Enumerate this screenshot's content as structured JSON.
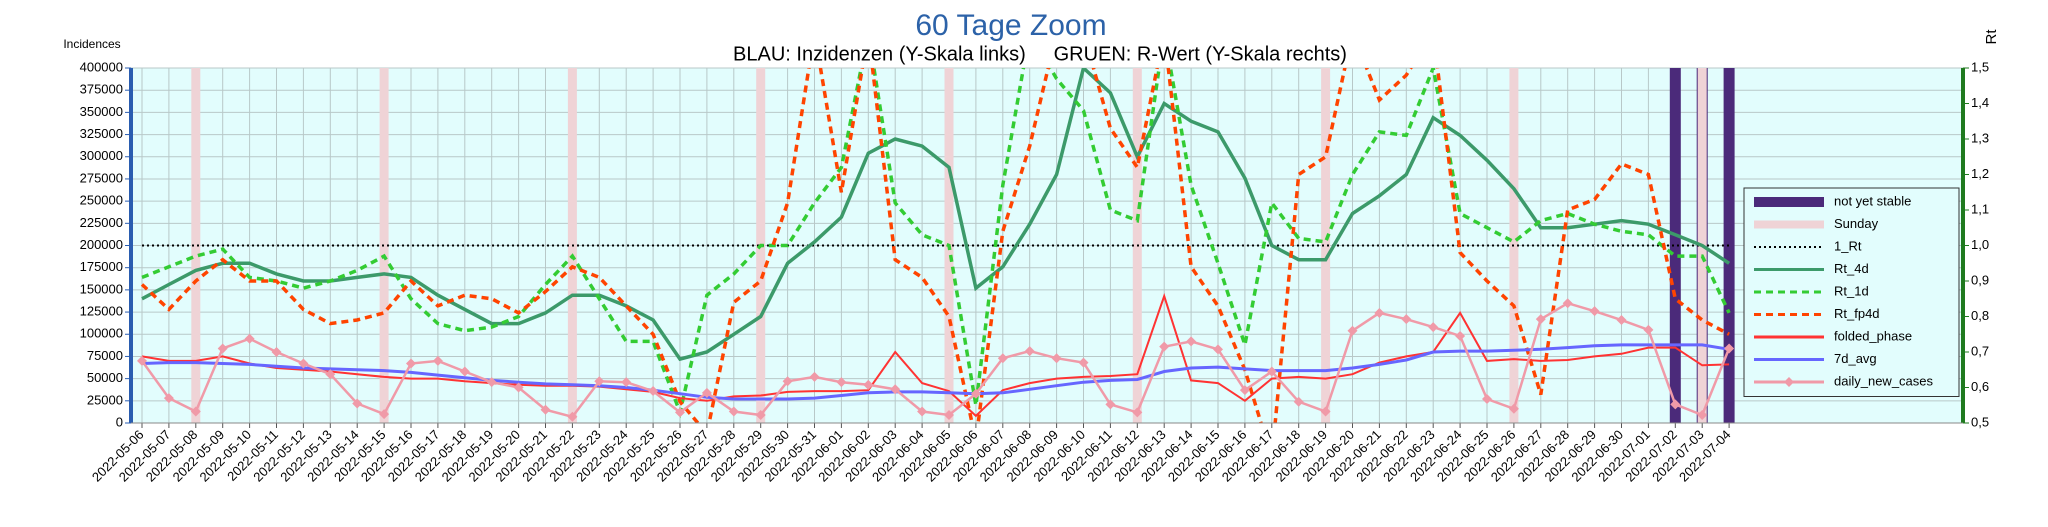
{
  "chart_data": {
    "type": "line",
    "title": "60 Tage Zoom",
    "subtitle": "BLAU: Inzidenzen (Y-Skala links)     GRUEN: R-Wert (Y-Skala rechts)",
    "y_label": "Incidences",
    "y2_label": "Rt",
    "categories": [
      "2022-05-06",
      "2022-05-07",
      "2022-05-08",
      "2022-05-09",
      "2022-05-10",
      "2022-05-11",
      "2022-05-12",
      "2022-05-13",
      "2022-05-14",
      "2022-05-15",
      "2022-05-16",
      "2022-05-17",
      "2022-05-18",
      "2022-05-19",
      "2022-05-20",
      "2022-05-21",
      "2022-05-22",
      "2022-05-23",
      "2022-05-24",
      "2022-05-25",
      "2022-05-26",
      "2022-05-27",
      "2022-05-28",
      "2022-05-29",
      "2022-05-30",
      "2022-05-31",
      "2022-06-01",
      "2022-06-02",
      "2022-06-03",
      "2022-06-04",
      "2022-06-05",
      "2022-06-06",
      "2022-06-07",
      "2022-06-08",
      "2022-06-09",
      "2022-06-10",
      "2022-06-11",
      "2022-06-12",
      "2022-06-13",
      "2022-06-14",
      "2022-06-15",
      "2022-06-16",
      "2022-06-17",
      "2022-06-18",
      "2022-06-19",
      "2022-06-20",
      "2022-06-21",
      "2022-06-22",
      "2022-06-23",
      "2022-06-24",
      "2022-06-25",
      "2022-06-26",
      "2022-06-27",
      "2022-06-28",
      "2022-06-29",
      "2022-06-30",
      "2022-07-01",
      "2022-07-02",
      "2022-07-03",
      "2022-07-04"
    ],
    "ylim": [
      0,
      400000
    ],
    "yticks": [
      0,
      25000,
      50000,
      75000,
      100000,
      125000,
      150000,
      175000,
      200000,
      225000,
      250000,
      275000,
      300000,
      325000,
      350000,
      375000,
      400000
    ],
    "y2lim": [
      0.5,
      1.5
    ],
    "y2ticks": [
      {
        "value": 0.5,
        "label": "0,5"
      },
      {
        "value": 0.6,
        "label": "0,6"
      },
      {
        "value": 0.7,
        "label": "0,7"
      },
      {
        "value": 0.8,
        "label": "0,8"
      },
      {
        "value": 0.9,
        "label": "0,9"
      },
      {
        "value": 1.0,
        "label": "1,0"
      },
      {
        "value": 1.1,
        "label": "1,1"
      },
      {
        "value": 1.2,
        "label": "1,2"
      },
      {
        "value": 1.3,
        "label": "1,3"
      },
      {
        "value": 1.4,
        "label": "1,4"
      },
      {
        "value": 1.5,
        "label": "1,5"
      }
    ],
    "grid": true,
    "legend": "right",
    "series": [
      {
        "name": "not yet stable",
        "color": "#4b2a7a",
        "style": "bar",
        "values": [
          null,
          null,
          null,
          null,
          null,
          null,
          null,
          null,
          null,
          null,
          null,
          null,
          null,
          null,
          null,
          null,
          null,
          null,
          null,
          null,
          null,
          null,
          null,
          null,
          null,
          null,
          null,
          null,
          null,
          null,
          null,
          null,
          null,
          null,
          null,
          null,
          null,
          null,
          null,
          null,
          null,
          null,
          null,
          null,
          null,
          null,
          null,
          null,
          null,
          null,
          null,
          null,
          null,
          null,
          null,
          null,
          null,
          400000,
          400000,
          400000
        ]
      },
      {
        "name": "Sunday",
        "color": "#efd3d6",
        "style": "bar",
        "values": [
          null,
          null,
          400000,
          null,
          null,
          null,
          null,
          null,
          null,
          400000,
          null,
          null,
          null,
          null,
          null,
          null,
          400000,
          null,
          null,
          null,
          null,
          null,
          null,
          400000,
          null,
          null,
          null,
          null,
          null,
          null,
          400000,
          null,
          null,
          null,
          null,
          null,
          null,
          400000,
          null,
          null,
          null,
          null,
          null,
          null,
          400000,
          null,
          null,
          null,
          null,
          null,
          null,
          400000,
          null,
          null,
          null,
          null,
          null,
          null,
          400000,
          null
        ]
      },
      {
        "name": "1_Rt",
        "color": "#000000",
        "style": "dotted",
        "axis": "y2",
        "values": [
          1,
          1,
          1,
          1,
          1,
          1,
          1,
          1,
          1,
          1,
          1,
          1,
          1,
          1,
          1,
          1,
          1,
          1,
          1,
          1,
          1,
          1,
          1,
          1,
          1,
          1,
          1,
          1,
          1,
          1,
          1,
          1,
          1,
          1,
          1,
          1,
          1,
          1,
          1,
          1,
          1,
          1,
          1,
          1,
          1,
          1,
          1,
          1,
          1,
          1,
          1,
          1,
          1,
          1,
          1,
          1,
          1,
          1,
          1,
          1
        ]
      },
      {
        "name": "Rt_4d",
        "color": "#3c9a6a",
        "style": "line",
        "axis": "y2",
        "values": [
          0.85,
          0.89,
          0.93,
          0.95,
          0.95,
          0.92,
          0.9,
          0.9,
          0.91,
          0.92,
          0.91,
          0.86,
          0.82,
          0.78,
          0.78,
          0.81,
          0.86,
          0.86,
          0.83,
          0.79,
          0.68,
          0.7,
          0.75,
          0.8,
          0.95,
          1.01,
          1.08,
          1.26,
          1.3,
          1.28,
          1.22,
          0.88,
          0.94,
          1.06,
          1.2,
          1.5,
          1.43,
          1.25,
          1.4,
          1.35,
          1.32,
          1.19,
          1.0,
          0.96,
          0.96,
          1.09,
          1.14,
          1.2,
          1.36,
          1.31,
          1.24,
          1.16,
          1.05,
          1.05,
          1.06,
          1.07,
          1.06,
          1.03,
          1.0,
          0.95
        ]
      },
      {
        "name": "Rt_1d",
        "color": "#33cc33",
        "style": "dashed",
        "axis": "y2",
        "values": [
          0.91,
          0.94,
          0.97,
          0.99,
          0.91,
          0.9,
          0.88,
          0.9,
          0.93,
          0.97,
          0.85,
          0.78,
          0.76,
          0.77,
          0.8,
          0.89,
          0.97,
          0.85,
          0.73,
          0.73,
          0.53,
          0.86,
          0.92,
          1.0,
          1.0,
          1.12,
          1.22,
          1.6,
          1.12,
          1.03,
          1.0,
          0.55,
          1.17,
          1.6,
          1.47,
          1.38,
          1.1,
          1.07,
          1.6,
          1.17,
          0.95,
          0.72,
          1.12,
          1.02,
          1.01,
          1.2,
          1.32,
          1.31,
          1.5,
          1.09,
          1.05,
          1.01,
          1.07,
          1.09,
          1.06,
          1.04,
          1.03,
          0.97,
          0.97,
          0.81
        ]
      },
      {
        "name": "Rt_fp4d",
        "color": "#ff4400",
        "style": "dashed",
        "axis": "y2",
        "values": [
          0.89,
          0.82,
          0.9,
          0.96,
          0.9,
          0.9,
          0.82,
          0.78,
          0.79,
          0.81,
          0.9,
          0.83,
          0.86,
          0.85,
          0.81,
          0.87,
          0.94,
          0.91,
          0.83,
          0.75,
          0.56,
          0.47,
          0.84,
          0.9,
          1.12,
          1.6,
          1.15,
          1.6,
          0.96,
          0.91,
          0.8,
          0.45,
          1.04,
          1.28,
          1.6,
          1.6,
          1.33,
          1.22,
          1.6,
          0.94,
          0.83,
          0.65,
          0.4,
          1.2,
          1.25,
          1.6,
          1.41,
          1.48,
          1.6,
          0.98,
          0.9,
          0.83,
          0.58,
          1.1,
          1.13,
          1.23,
          1.2,
          0.85,
          0.79,
          0.75
        ]
      },
      {
        "name": "folded_phase",
        "color": "#ff3333",
        "style": "line",
        "values": [
          75000,
          70000,
          70000,
          75000,
          67000,
          62000,
          60000,
          58000,
          55000,
          52000,
          50000,
          50000,
          47000,
          45000,
          43000,
          42000,
          42000,
          41000,
          38000,
          35000,
          28000,
          25000,
          30000,
          31000,
          35000,
          36000,
          36000,
          37000,
          80000,
          45000,
          36000,
          8000,
          37000,
          45000,
          50000,
          52000,
          53000,
          55000,
          143000,
          48000,
          45000,
          25000,
          50000,
          52000,
          50000,
          55000,
          68000,
          75000,
          80000,
          124000,
          70000,
          72000,
          70000,
          71000,
          75000,
          78000,
          85000,
          85000,
          65000,
          66000
        ]
      },
      {
        "name": "7d_avg",
        "color": "#6666ff",
        "style": "line",
        "values": [
          67000,
          68000,
          68000,
          67000,
          66000,
          64000,
          62000,
          61000,
          60000,
          59000,
          57000,
          54000,
          51000,
          48000,
          46000,
          44000,
          43000,
          42000,
          40000,
          37000,
          33000,
          29000,
          27000,
          27000,
          27000,
          28000,
          31000,
          34000,
          35000,
          35000,
          34000,
          33000,
          34000,
          38000,
          42000,
          46000,
          48000,
          49000,
          58000,
          62000,
          63000,
          61000,
          59000,
          59000,
          59000,
          62000,
          66000,
          71000,
          80000,
          81000,
          81000,
          82000,
          83000,
          85000,
          87000,
          88000,
          88000,
          88000,
          88000,
          83000
        ]
      },
      {
        "name": "daily_new_cases",
        "color": "#f09aa8",
        "style": "marker-line",
        "values": [
          70000,
          28000,
          13000,
          84000,
          95000,
          80000,
          67000,
          55000,
          22000,
          10000,
          67000,
          70000,
          58000,
          46000,
          40000,
          15000,
          7000,
          47000,
          46000,
          36000,
          12000,
          34000,
          13000,
          9000,
          47000,
          52000,
          46000,
          43000,
          38000,
          13000,
          9000,
          33000,
          73000,
          81000,
          73000,
          68000,
          21000,
          12000,
          86000,
          92000,
          83000,
          37000,
          58000,
          24000,
          13000,
          104000,
          124000,
          117000,
          108000,
          98000,
          27000,
          16000,
          117000,
          135000,
          126000,
          116000,
          105000,
          21000,
          9000,
          84000
        ]
      }
    ]
  }
}
